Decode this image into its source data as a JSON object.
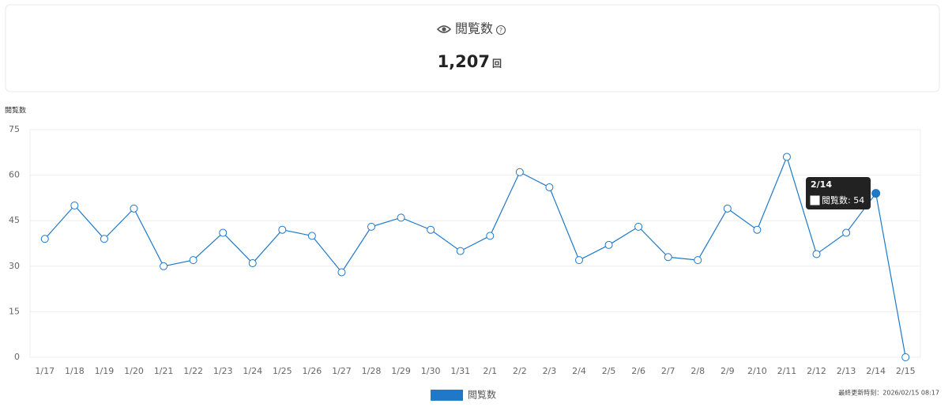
{
  "card": {
    "title": "閲覧数",
    "value": "1,207",
    "unit": "回"
  },
  "chart_data": {
    "type": "line",
    "y_label": "閲覧数",
    "categories": [
      "1/17",
      "1/18",
      "1/19",
      "1/20",
      "1/21",
      "1/22",
      "1/23",
      "1/24",
      "1/25",
      "1/26",
      "1/27",
      "1/28",
      "1/29",
      "1/30",
      "1/31",
      "2/1",
      "2/2",
      "2/3",
      "2/4",
      "2/5",
      "2/6",
      "2/7",
      "2/8",
      "2/9",
      "2/10",
      "2/11",
      "2/12",
      "2/13",
      "2/14",
      "2/15"
    ],
    "series": [
      {
        "name": "閲覧数",
        "color": "#1f78c8",
        "values": [
          39,
          50,
          39,
          49,
          30,
          32,
          41,
          31,
          42,
          40,
          28,
          43,
          46,
          42,
          35,
          40,
          61,
          56,
          32,
          37,
          43,
          33,
          32,
          49,
          42,
          66,
          34,
          41,
          54,
          0
        ]
      }
    ],
    "ylim": [
      0,
      75
    ],
    "yticks": [
      0,
      15,
      30,
      45,
      60,
      75
    ],
    "grid": true,
    "legend": "bottom"
  },
  "footer": {
    "updated": "最終更新時刻：2026/02/15 08:17"
  }
}
